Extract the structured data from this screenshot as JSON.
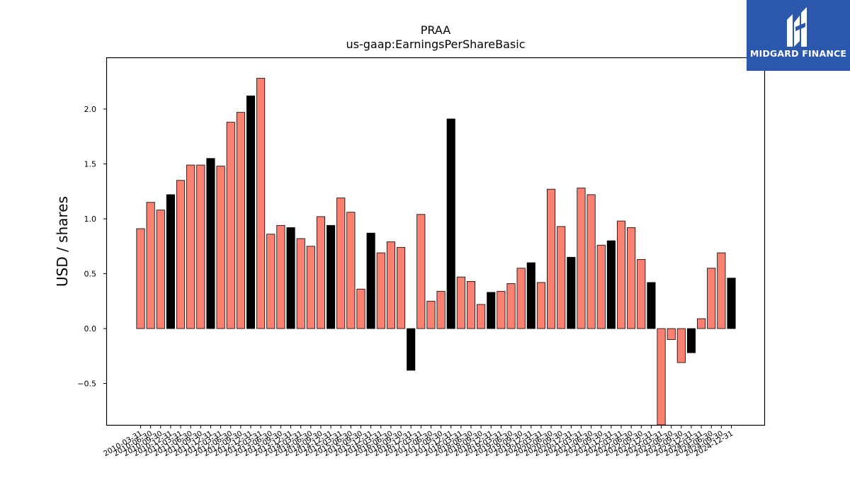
{
  "chart_data": {
    "type": "bar",
    "title": "PRAA",
    "subtitle": "us-gaap:EarningsPerShareBasic",
    "xlabel": "",
    "ylabel": "USD / shares",
    "ylim": [
      -0.88,
      2.45
    ],
    "yticks": [
      -0.5,
      0.0,
      0.5,
      1.0,
      1.5,
      2.0
    ],
    "grid": false,
    "colors": {
      "quarter": "#fa8072",
      "annual": "#000000"
    },
    "categories": [
      "2010-03-31",
      "2010-06-30",
      "2010-09-30",
      "2010-12-31",
      "2011-03-31",
      "2011-06-30",
      "2011-09-30",
      "2011-12-31",
      "2012-03-31",
      "2012-06-30",
      "2012-09-30",
      "2012-12-31",
      "2013-03-31",
      "2013-06-30",
      "2013-09-30",
      "2013-12-31",
      "2014-03-31",
      "2014-06-30",
      "2014-09-30",
      "2014-12-31",
      "2015-03-31",
      "2015-06-30",
      "2015-09-30",
      "2015-12-31",
      "2016-03-31",
      "2016-06-30",
      "2016-09-30",
      "2016-12-31",
      "2017-03-31",
      "2017-06-30",
      "2017-09-30",
      "2017-12-31",
      "2018-03-31",
      "2018-06-30",
      "2018-09-30",
      "2018-12-31",
      "2019-03-31",
      "2019-06-30",
      "2019-09-30",
      "2019-12-31",
      "2020-03-31",
      "2020-06-30",
      "2020-09-30",
      "2020-12-31",
      "2021-03-31",
      "2021-06-30",
      "2021-09-30",
      "2021-12-31",
      "2022-03-31",
      "2022-06-30",
      "2022-09-30",
      "2022-12-31",
      "2023-03-31",
      "2023-06-30",
      "2023-09-30",
      "2023-12-31",
      "2024-03-31",
      "2024-06-30",
      "2024-09-30",
      "2024-12-31"
    ],
    "values": [
      0.91,
      1.15,
      1.08,
      1.22,
      1.35,
      1.49,
      1.49,
      1.55,
      1.48,
      1.88,
      1.97,
      2.12,
      2.28,
      0.86,
      0.94,
      0.92,
      0.82,
      0.75,
      1.02,
      0.94,
      1.19,
      1.06,
      0.36,
      0.87,
      0.69,
      0.79,
      0.74,
      -0.38,
      1.04,
      0.25,
      0.34,
      1.91,
      0.47,
      0.43,
      0.22,
      0.33,
      0.34,
      0.41,
      0.55,
      0.6,
      0.42,
      1.27,
      0.93,
      0.65,
      1.28,
      1.22,
      0.76,
      0.8,
      0.98,
      0.92,
      0.63,
      0.42,
      -0.88,
      -0.1,
      -0.31,
      -0.22,
      0.09,
      0.55,
      0.69,
      0.46
    ],
    "annual": [
      false,
      false,
      false,
      true,
      false,
      false,
      false,
      true,
      false,
      false,
      false,
      true,
      false,
      false,
      false,
      true,
      false,
      false,
      false,
      true,
      false,
      false,
      false,
      true,
      false,
      false,
      false,
      true,
      false,
      false,
      false,
      true,
      false,
      false,
      false,
      true,
      false,
      false,
      false,
      true,
      false,
      false,
      false,
      true,
      false,
      false,
      false,
      true,
      false,
      false,
      false,
      true,
      false,
      false,
      false,
      true,
      false,
      false,
      false,
      true
    ]
  },
  "logo": {
    "text": "MIDGARD FINANCE",
    "icon": "midgard-logo-icon"
  }
}
